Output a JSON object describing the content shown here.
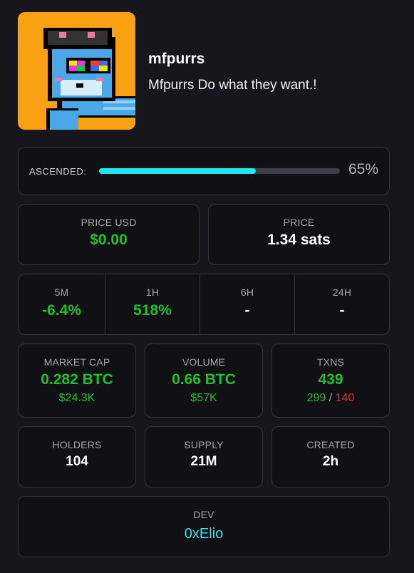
{
  "token": {
    "name": "mfpurrs",
    "description": "Mfpurrs Do what they want.!"
  },
  "ascended": {
    "label": "ASCENDED:",
    "progress": 0.65,
    "percent_text": "65%"
  },
  "price_usd": {
    "label": "PRICE USD",
    "value": "$0.00"
  },
  "price": {
    "label": "PRICE",
    "value": "1.34 sats"
  },
  "changes": [
    {
      "label": "5M",
      "value": "-6.4%"
    },
    {
      "label": "1H",
      "value": "518%"
    },
    {
      "label": "6H",
      "value": "-"
    },
    {
      "label": "24H",
      "value": "-"
    }
  ],
  "market_cap": {
    "label": "MARKET CAP",
    "value": "0.282 BTC",
    "sub": "$24.3K"
  },
  "volume": {
    "label": "VOLUME",
    "value": "0.66 BTC",
    "sub": "$57K"
  },
  "txns": {
    "label": "TXNS",
    "value": "439",
    "buys": "299",
    "separator": "/",
    "sells": "140"
  },
  "holders": {
    "label": "HOLDERS",
    "value": "104"
  },
  "supply": {
    "label": "SUPPLY",
    "value": "21M"
  },
  "created": {
    "label": "CREATED",
    "value": "2h"
  },
  "dev": {
    "label": "DEV",
    "value": "0xElio"
  },
  "colors": {
    "positive": "#1fc12c",
    "negative": "#e0312f",
    "accent": "#21e6ef",
    "avatar_bg": "#f9a112"
  }
}
